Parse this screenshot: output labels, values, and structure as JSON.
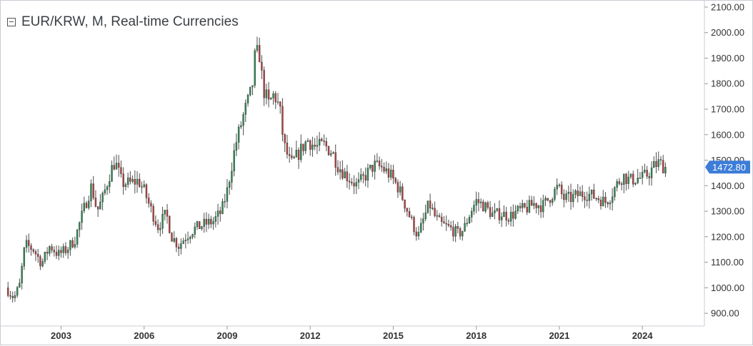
{
  "title": "EUR/KRW, M, Real-time Currencies",
  "colors": {
    "up": "#2e8b57",
    "down": "#b84040",
    "wick": "#4d4d4d",
    "price_badge": "#3d7dd8",
    "axis_text": "#333333",
    "grid": "#c8cdd3"
  },
  "chart_data": {
    "type": "candlestick",
    "title": "EUR/KRW, M, Real-time Currencies",
    "timeframe": "monthly",
    "x_range": [
      2001.0,
      2025.08
    ],
    "ylim": [
      850,
      2125
    ],
    "y_ticks": [
      900,
      1000,
      1100,
      1200,
      1300,
      1400,
      1500,
      1600,
      1700,
      1800,
      1900,
      2000,
      2100
    ],
    "y_tick_labels": [
      "900.00",
      "1000.00",
      "1100.00",
      "1200.00",
      "1300.00",
      "1400.00",
      "1500.00",
      "1600.00",
      "1700.00",
      "1800.00",
      "1900.00",
      "2000.00",
      "2100.00"
    ],
    "x_ticks": [
      2003,
      2006,
      2009,
      2012,
      2015,
      2018,
      2021,
      2024
    ],
    "x_tick_labels": [
      "2003",
      "2006",
      "2009",
      "2012",
      "2015",
      "2018",
      "2021",
      "2024"
    ],
    "last_price": 1472.8,
    "last_price_label": "1472.80",
    "close_path": [
      [
        2001.0,
        1000
      ],
      [
        2001.3,
        960
      ],
      [
        2001.5,
        1010
      ],
      [
        2001.7,
        1170
      ],
      [
        2002.0,
        1150
      ],
      [
        2002.3,
        1095
      ],
      [
        2002.6,
        1165
      ],
      [
        2002.9,
        1130
      ],
      [
        2003.2,
        1150
      ],
      [
        2003.5,
        1190
      ],
      [
        2003.8,
        1300
      ],
      [
        2004.1,
        1400
      ],
      [
        2004.3,
        1300
      ],
      [
        2004.5,
        1350
      ],
      [
        2004.8,
        1460
      ],
      [
        2004.95,
        1495
      ],
      [
        2005.2,
        1410
      ],
      [
        2005.5,
        1410
      ],
      [
        2005.8,
        1420
      ],
      [
        2006.0,
        1380
      ],
      [
        2006.2,
        1320
      ],
      [
        2006.5,
        1240
      ],
      [
        2006.8,
        1290
      ],
      [
        2007.0,
        1200
      ],
      [
        2007.25,
        1165
      ],
      [
        2007.5,
        1200
      ],
      [
        2007.8,
        1230
      ],
      [
        2008.2,
        1250
      ],
      [
        2008.5,
        1260
      ],
      [
        2008.8,
        1300
      ],
      [
        2009.0,
        1380
      ],
      [
        2009.3,
        1560
      ],
      [
        2009.6,
        1680
      ],
      [
        2009.9,
        1780
      ],
      [
        2010.0,
        1900
      ],
      [
        2010.15,
        1930
      ],
      [
        2010.3,
        1780
      ],
      [
        2010.5,
        1720
      ],
      [
        2010.7,
        1760
      ],
      [
        2010.9,
        1700
      ],
      [
        2011.05,
        1560
      ],
      [
        2011.3,
        1480
      ],
      [
        2011.6,
        1530
      ],
      [
        2011.9,
        1580
      ],
      [
        2012.2,
        1550
      ],
      [
        2012.5,
        1560
      ],
      [
        2012.8,
        1530
      ],
      [
        2013.0,
        1480
      ],
      [
        2013.3,
        1440
      ],
      [
        2013.5,
        1420
      ],
      [
        2013.7,
        1400
      ],
      [
        2014.0,
        1440
      ],
      [
        2014.3,
        1480
      ],
      [
        2014.6,
        1470
      ],
      [
        2014.9,
        1440
      ],
      [
        2015.2,
        1390
      ],
      [
        2015.45,
        1320
      ],
      [
        2015.7,
        1250
      ],
      [
        2015.9,
        1200
      ],
      [
        2016.1,
        1270
      ],
      [
        2016.3,
        1330
      ],
      [
        2016.5,
        1280
      ],
      [
        2016.7,
        1250
      ],
      [
        2016.9,
        1240
      ],
      [
        2017.1,
        1230
      ],
      [
        2017.35,
        1210
      ],
      [
        2017.55,
        1230
      ],
      [
        2017.8,
        1300
      ],
      [
        2018.0,
        1340
      ],
      [
        2018.3,
        1320
      ],
      [
        2018.6,
        1285
      ],
      [
        2018.9,
        1290
      ],
      [
        2019.2,
        1280
      ],
      [
        2019.5,
        1300
      ],
      [
        2019.8,
        1310
      ],
      [
        2020.1,
        1330
      ],
      [
        2020.4,
        1320
      ],
      [
        2020.7,
        1360
      ],
      [
        2020.95,
        1395
      ],
      [
        2021.15,
        1350
      ],
      [
        2021.4,
        1350
      ],
      [
        2021.7,
        1365
      ],
      [
        2021.95,
        1370
      ],
      [
        2022.2,
        1360
      ],
      [
        2022.45,
        1350
      ],
      [
        2022.65,
        1335
      ],
      [
        2022.85,
        1360
      ],
      [
        2023.05,
        1400
      ],
      [
        2023.3,
        1440
      ],
      [
        2023.55,
        1420
      ],
      [
        2023.8,
        1430
      ],
      [
        2024.0,
        1430
      ],
      [
        2024.25,
        1450
      ],
      [
        2024.45,
        1480
      ],
      [
        2024.6,
        1490
      ],
      [
        2024.8,
        1472.8
      ]
    ]
  }
}
